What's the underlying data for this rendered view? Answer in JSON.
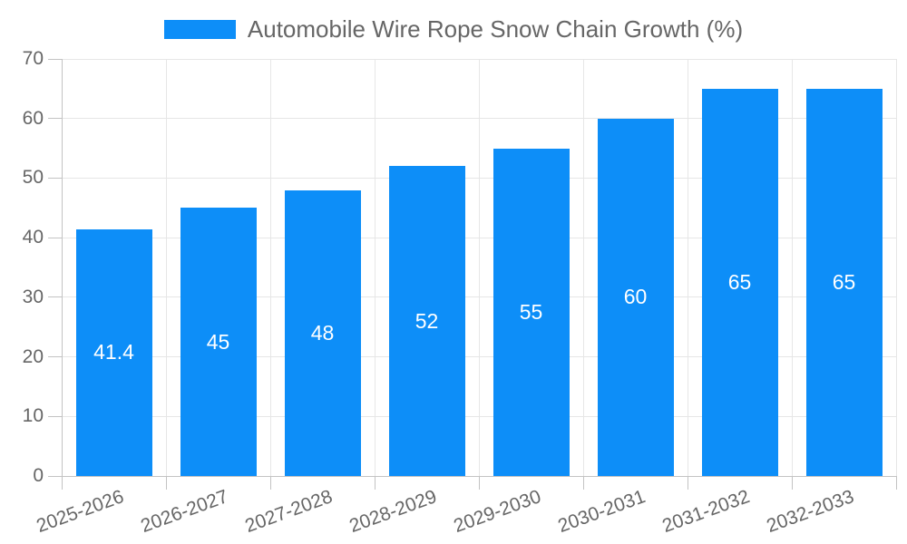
{
  "legend": {
    "label": "Automobile Wire Rope Snow Chain Growth (%)"
  },
  "chart_data": {
    "type": "bar",
    "title": "Automobile Wire Rope Snow Chain Growth (%)",
    "categories": [
      "2025-2026",
      "2026-2027",
      "2027-2028",
      "2028-2029",
      "2029-2030",
      "2030-2031",
      "2031-2032",
      "2032-2033"
    ],
    "values": [
      41.4,
      45,
      48,
      52,
      55,
      60,
      65,
      65
    ],
    "value_labels": [
      "41.4",
      "45",
      "48",
      "52",
      "55",
      "60",
      "65",
      "65"
    ],
    "xlabel": "",
    "ylabel": "",
    "ylim": [
      0,
      70
    ],
    "yticks": [
      0,
      10,
      20,
      30,
      40,
      50,
      60,
      70
    ],
    "grid": true,
    "legend_position": "top-center",
    "x_label_rotation_deg": -20,
    "colors": {
      "bar": "#0d8ef8",
      "bar_value_text": "#ffffff",
      "axis_text": "#666666",
      "gridline": "#e6e6e6",
      "axis_line": "#c3c3c3"
    }
  }
}
